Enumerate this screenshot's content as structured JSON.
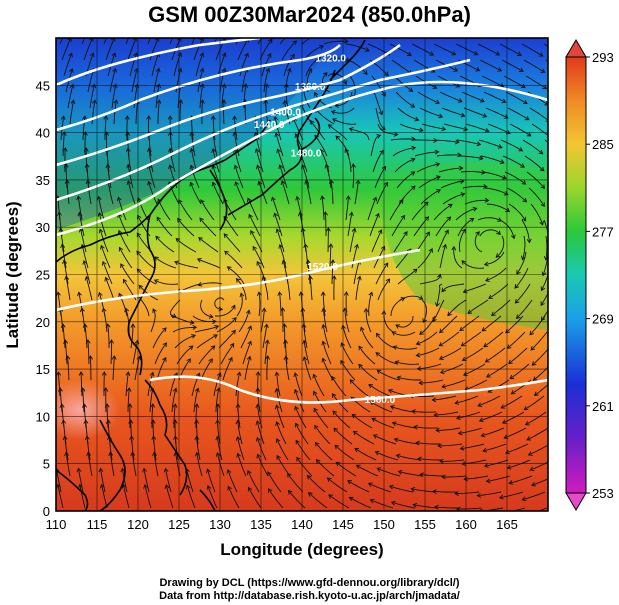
{
  "title": "GSM 00Z30Mar2024 (850.0hPa)",
  "axes": {
    "xlabel": "Longitude (degrees)",
    "ylabel": "Latitude  (degrees)",
    "xlim": [
      110,
      170
    ],
    "ylim": [
      0,
      50
    ],
    "xticks": [
      110,
      115,
      120,
      125,
      130,
      135,
      140,
      145,
      150,
      155,
      160,
      165
    ],
    "yticks": [
      0,
      5,
      10,
      15,
      20,
      25,
      30,
      35,
      40,
      45
    ]
  },
  "colorbar": {
    "ticks": [
      293,
      285,
      277,
      269,
      261,
      253
    ],
    "range": [
      253,
      293
    ]
  },
  "contours": [
    {
      "label": "1560.0",
      "lon": 149.5,
      "lat": 11.4
    },
    {
      "label": "1520.0",
      "lon": 142.5,
      "lat": 25.5
    },
    {
      "label": "1480.0",
      "lon": 140.5,
      "lat": 37.5
    },
    {
      "label": "1440.0",
      "lon": 136.0,
      "lat": 40.5
    },
    {
      "label": "1400.0",
      "lon": 138.0,
      "lat": 41.8
    },
    {
      "label": "1360.0",
      "lon": 141.0,
      "lat": 44.5
    },
    {
      "label": "1320.0",
      "lon": 143.5,
      "lat": 47.5
    }
  ],
  "credits": {
    "line1": "Drawing by DCL (https://www.gfd-dennou.org/library/dcl/)",
    "line2": "Data from http://database.rish.kyoto-u.ac.jp/arch/jmadata/"
  }
}
